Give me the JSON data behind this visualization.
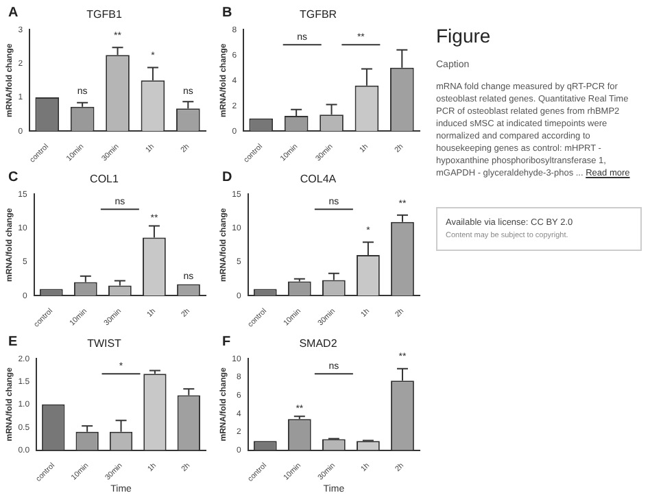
{
  "chart_data": [
    {
      "type": "bar",
      "title": "TGFB1",
      "ylabel": "mRNA/fold change",
      "categories": [
        "control",
        "10min",
        "30min",
        "1h",
        "2h"
      ],
      "values": [
        1,
        0.72,
        2.25,
        1.5,
        0.67
      ],
      "errors": [
        null,
        0.12,
        0.22,
        0.38,
        0.2
      ],
      "colors": [
        "#777777",
        "#999999",
        "#b5b5b5",
        "#c8c8c8",
        "#a0a0a0"
      ],
      "ylim": [
        0,
        3
      ],
      "yticks": [
        0,
        1,
        2,
        3
      ],
      "annotations": [
        "A",
        {
          "text": "ns",
          "x": "10min",
          "y": 0.95
        },
        {
          "text": "**",
          "x": "30min",
          "y": 2.6
        },
        {
          "text": "*",
          "x": "1h",
          "y": 2.0
        },
        {
          "text": "ns",
          "x": "2h",
          "y": 0.95
        }
      ]
    },
    {
      "type": "bar",
      "title": "TGFBR",
      "ylabel": "mRNA/fold change",
      "categories": [
        "control",
        "10min",
        "30min",
        "1h",
        "2h"
      ],
      "values": [
        1,
        1.2,
        1.3,
        3.6,
        5.0
      ],
      "errors": [
        null,
        0.5,
        0.8,
        1.3,
        1.4
      ],
      "colors": [
        "#777777",
        "#999999",
        "#b5b5b5",
        "#c8c8c8",
        "#a0a0a0"
      ],
      "ylim": [
        0,
        8
      ],
      "yticks": [
        0,
        2,
        4,
        6,
        8
      ],
      "annotations": [
        "B",
        "ns",
        "**"
      ]
    },
    {
      "type": "bar",
      "title": "COL1",
      "ylabel": "mRNA/fold change",
      "categories": [
        "control",
        "10min",
        "30min",
        "1h",
        "2h"
      ],
      "values": [
        1,
        2.0,
        1.5,
        8.6,
        1.7
      ],
      "errors": [
        null,
        0.9,
        0.7,
        1.7,
        null
      ],
      "colors": [
        "#777777",
        "#999999",
        "#b5b5b5",
        "#c8c8c8",
        "#a0a0a0"
      ],
      "ylim": [
        0,
        15
      ],
      "yticks": [
        0,
        5,
        10,
        15
      ],
      "annotations": [
        "C",
        "ns",
        {
          "text": "**",
          "x": "1h",
          "y": 10.3
        },
        {
          "text": "ns",
          "x": "2h",
          "y": 1.7
        }
      ]
    },
    {
      "type": "bar",
      "title": "COL4A",
      "ylabel": "mRNA/fold change",
      "categories": [
        "control",
        "10min",
        "30min",
        "1h",
        "2h"
      ],
      "values": [
        1,
        2.1,
        2.3,
        6.0,
        10.9
      ],
      "errors": [
        null,
        0.4,
        1.0,
        1.9,
        1.0
      ],
      "colors": [
        "#777777",
        "#999999",
        "#b5b5b5",
        "#c8c8c8",
        "#a0a0a0"
      ],
      "ylim": [
        0,
        15
      ],
      "yticks": [
        0,
        5,
        10,
        15
      ],
      "annotations": [
        "D",
        "ns",
        {
          "text": "*",
          "x": "1h",
          "y": 8.5
        },
        {
          "text": "**",
          "x": "2h",
          "y": 12.5
        }
      ]
    },
    {
      "type": "bar",
      "title": "TWIST",
      "xlabel": "Time",
      "ylabel": "mRNA/fold change",
      "categories": [
        "control",
        "10min",
        "30min",
        "1h",
        "2h"
      ],
      "values": [
        1.0,
        0.4,
        0.4,
        1.67,
        1.2
      ],
      "errors": [
        null,
        0.13,
        0.25,
        0.07,
        0.14
      ],
      "colors": [
        "#777777",
        "#999999",
        "#b5b5b5",
        "#c8c8c8",
        "#a0a0a0"
      ],
      "ylim": [
        0,
        2
      ],
      "yticks": [
        {
          "value": 0,
          "label": "0.0"
        },
        {
          "value": 0.5,
          "label": "0.5"
        },
        {
          "value": 1,
          "label": "1.0"
        },
        {
          "value": 1.5,
          "label": "1.5"
        },
        {
          "value": 2,
          "label": "2.0"
        }
      ],
      "annotations": [
        "E",
        "*"
      ]
    },
    {
      "type": "bar",
      "title": "SMAD2",
      "xlabel": "Time",
      "ylabel": "mRNA/fold change",
      "categories": [
        "control",
        "10min",
        "30min",
        "1h",
        "2h"
      ],
      "values": [
        1,
        3.4,
        1.2,
        1.0,
        7.6
      ],
      "errors": [
        null,
        0.3,
        0.05,
        0.05,
        1.3
      ],
      "colors": [
        "#777777",
        "#999999",
        "#b5b5b5",
        "#c8c8c8",
        "#a0a0a0"
      ],
      "ylim": [
        0,
        10
      ],
      "yticks": [
        0,
        2,
        4,
        6,
        8,
        10
      ],
      "annotations": [
        "F",
        "ns",
        {
          "text": "**",
          "x": "10min",
          "y": 3.7
        },
        {
          "text": "**",
          "x": "2h",
          "y": 9.4
        }
      ]
    },
    {
      "type": "other",
      "title": "Figure",
      "subtitle": "Caption",
      "annotations": [
        "mRNA fold change measured by qRT-PCR for osteoblast related genes. Quantitative Real Time PCR of osteoblast related genes from rhBMP2 induced sMSC at indicated timepoints were normalized and compared according to housekeeping genes as control: mHPRT - hypoxanthine phosphoribosyltransferase 1, mGAPDH - glyceraldehyde-3-phos ...",
        "Read more",
        "Available via license: CC BY 2.0",
        "Content may be subject to copyright."
      ]
    }
  ]
}
